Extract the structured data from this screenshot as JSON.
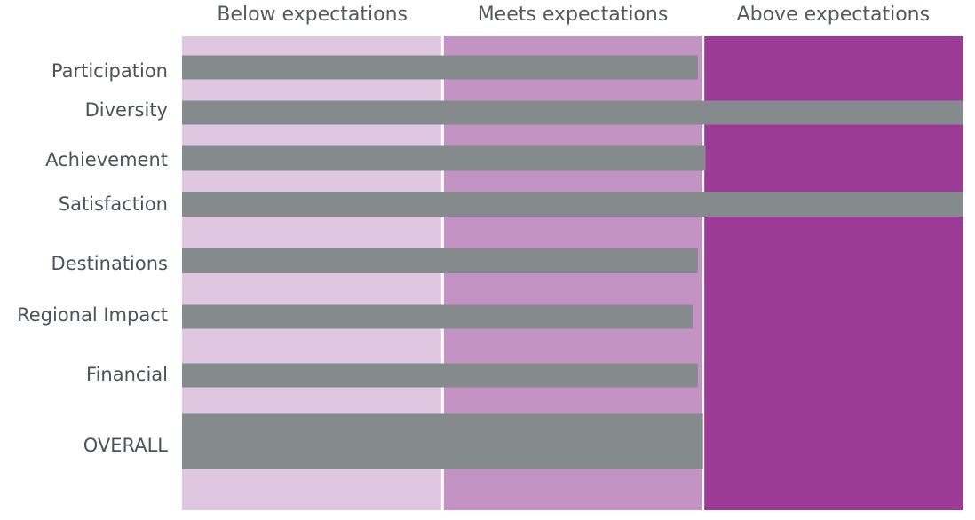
{
  "chart_data": {
    "type": "bar",
    "orientation": "horizontal",
    "title": "",
    "xlabel": "",
    "ylabel": "",
    "bands": [
      {
        "label": "Below expectations",
        "from": 0,
        "to": 1,
        "color": "#dfc7e1"
      },
      {
        "label": "Meets expectations",
        "from": 1,
        "to": 2,
        "color": "#c393c4"
      },
      {
        "label": "Above expectations",
        "from": 2,
        "to": 3,
        "color": "#9b3b96"
      }
    ],
    "categories": [
      "Participation",
      "Diversity",
      "Achievement",
      "Satisfaction",
      "Destinations",
      "Regional Impact",
      "Financial",
      "OVERALL"
    ],
    "values": [
      1.98,
      3.0,
      2.01,
      3.0,
      1.98,
      1.96,
      1.98,
      2.0
    ],
    "xlim": [
      0,
      3
    ],
    "bar_color": "#858b8d",
    "grid": false
  }
}
